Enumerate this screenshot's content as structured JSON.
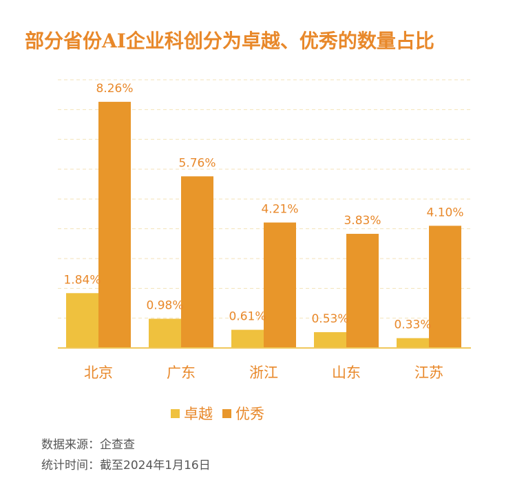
{
  "title": "部分省份AI企业科创分为卓越、优秀的数量占比",
  "colors": {
    "excellent": "#EFC13E",
    "good": "#E8962A",
    "text": "#E8882A",
    "grid": "#F3E2B8",
    "axis": "#F0C75A"
  },
  "chart_data": {
    "type": "bar",
    "categories": [
      "北京",
      "广东",
      "浙江",
      "山东",
      "江苏"
    ],
    "series": [
      {
        "name": "卓越",
        "values": [
          1.84,
          0.98,
          0.61,
          0.53,
          0.33
        ],
        "labels": [
          "1.84%",
          "0.98%",
          "0.61%",
          "0.53%",
          "0.33%"
        ]
      },
      {
        "name": "优秀",
        "values": [
          8.26,
          5.76,
          4.21,
          3.83,
          4.1
        ],
        "labels": [
          "8.26%",
          "5.76%",
          "4.21%",
          "3.83%",
          "4.10%"
        ]
      }
    ],
    "ylim": [
      0,
      9
    ],
    "grid": true,
    "legend": "bottom-center"
  },
  "footer": {
    "source": "数据来源：企查查",
    "time": "统计时间：截至2024年1月16日"
  }
}
